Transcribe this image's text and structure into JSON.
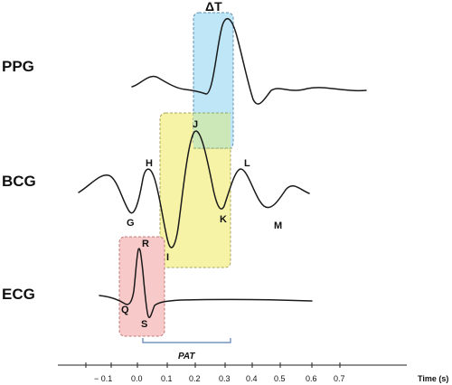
{
  "rows": {
    "ppg": "PPG",
    "bcg": "BCG",
    "ecg": "ECG"
  },
  "points": {
    "ecg": {
      "q": "Q",
      "r": "R",
      "s": "S"
    },
    "bcg": {
      "g": "G",
      "h": "H",
      "i": "I",
      "j": "J",
      "k": "K",
      "l": "L",
      "m": "M"
    }
  },
  "annotations": {
    "delta_t": "ΔT",
    "pat": "PAT"
  },
  "axis": {
    "title": "Time (s)",
    "ticks": [
      "− 0.1",
      "0.0",
      "0.1",
      "0.2",
      "0.3",
      "0.4",
      "0.5",
      "0.6",
      "0.7"
    ]
  },
  "colors": {
    "delta_t_box": "#bfe6f7",
    "delta_t_border": "#5b8fb3",
    "bcg_box": "#f7f3a6",
    "bcg_border": "#a8a45a",
    "overlap_box": "#cde8b8",
    "ecg_box": "#f8c9c9",
    "ecg_border": "#c07a7a",
    "pat_bracket": "#5b7fb0"
  }
}
